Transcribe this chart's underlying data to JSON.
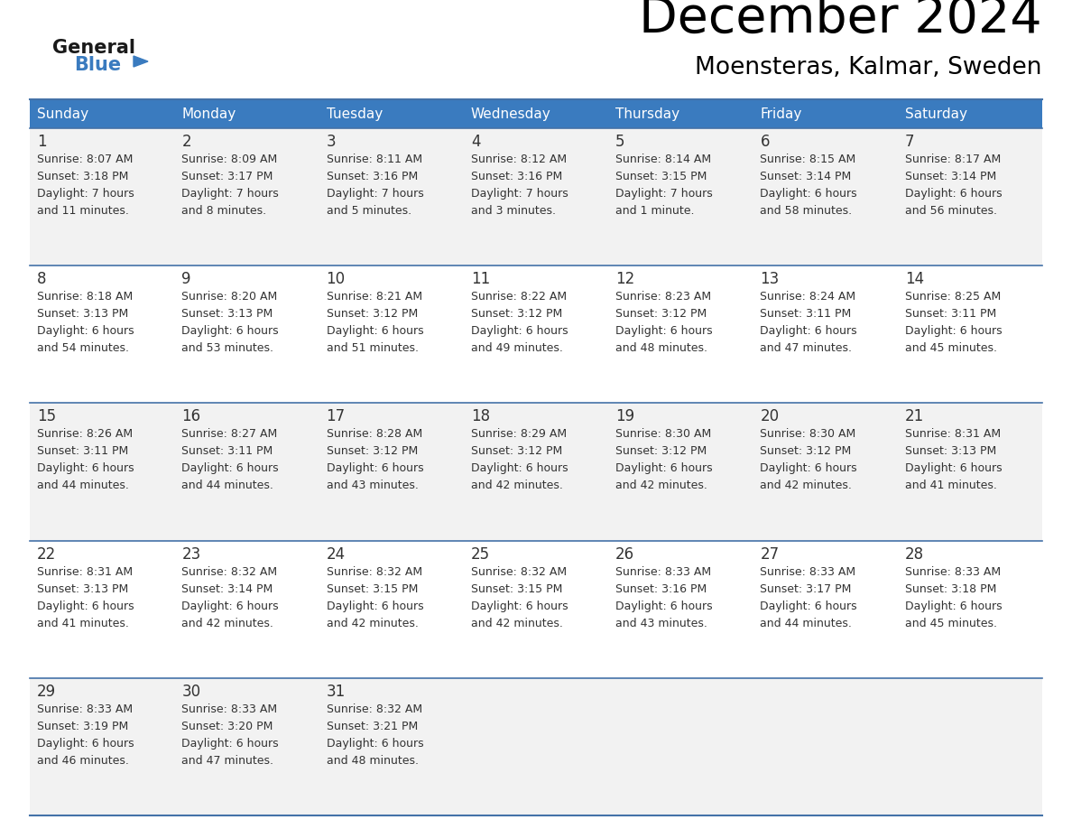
{
  "title": "December 2024",
  "subtitle": "Moensteras, Kalmar, Sweden",
  "header_color": "#3a7bbf",
  "header_text_color": "#ffffff",
  "days_of_week": [
    "Sunday",
    "Monday",
    "Tuesday",
    "Wednesday",
    "Thursday",
    "Friday",
    "Saturday"
  ],
  "bg_color_odd": "#f2f2f2",
  "bg_color_even": "#ffffff",
  "line_color": "#4472a8",
  "text_color": "#333333",
  "calendar_data": [
    [
      {
        "day": 1,
        "sunrise": "8:07 AM",
        "sunset": "3:18 PM",
        "daylight": "7 hours",
        "daylight2": "and 11 minutes."
      },
      {
        "day": 2,
        "sunrise": "8:09 AM",
        "sunset": "3:17 PM",
        "daylight": "7 hours",
        "daylight2": "and 8 minutes."
      },
      {
        "day": 3,
        "sunrise": "8:11 AM",
        "sunset": "3:16 PM",
        "daylight": "7 hours",
        "daylight2": "and 5 minutes."
      },
      {
        "day": 4,
        "sunrise": "8:12 AM",
        "sunset": "3:16 PM",
        "daylight": "7 hours",
        "daylight2": "and 3 minutes."
      },
      {
        "day": 5,
        "sunrise": "8:14 AM",
        "sunset": "3:15 PM",
        "daylight": "7 hours",
        "daylight2": "and 1 minute."
      },
      {
        "day": 6,
        "sunrise": "8:15 AM",
        "sunset": "3:14 PM",
        "daylight": "6 hours",
        "daylight2": "and 58 minutes."
      },
      {
        "day": 7,
        "sunrise": "8:17 AM",
        "sunset": "3:14 PM",
        "daylight": "6 hours",
        "daylight2": "and 56 minutes."
      }
    ],
    [
      {
        "day": 8,
        "sunrise": "8:18 AM",
        "sunset": "3:13 PM",
        "daylight": "6 hours",
        "daylight2": "and 54 minutes."
      },
      {
        "day": 9,
        "sunrise": "8:20 AM",
        "sunset": "3:13 PM",
        "daylight": "6 hours",
        "daylight2": "and 53 minutes."
      },
      {
        "day": 10,
        "sunrise": "8:21 AM",
        "sunset": "3:12 PM",
        "daylight": "6 hours",
        "daylight2": "and 51 minutes."
      },
      {
        "day": 11,
        "sunrise": "8:22 AM",
        "sunset": "3:12 PM",
        "daylight": "6 hours",
        "daylight2": "and 49 minutes."
      },
      {
        "day": 12,
        "sunrise": "8:23 AM",
        "sunset": "3:12 PM",
        "daylight": "6 hours",
        "daylight2": "and 48 minutes."
      },
      {
        "day": 13,
        "sunrise": "8:24 AM",
        "sunset": "3:11 PM",
        "daylight": "6 hours",
        "daylight2": "and 47 minutes."
      },
      {
        "day": 14,
        "sunrise": "8:25 AM",
        "sunset": "3:11 PM",
        "daylight": "6 hours",
        "daylight2": "and 45 minutes."
      }
    ],
    [
      {
        "day": 15,
        "sunrise": "8:26 AM",
        "sunset": "3:11 PM",
        "daylight": "6 hours",
        "daylight2": "and 44 minutes."
      },
      {
        "day": 16,
        "sunrise": "8:27 AM",
        "sunset": "3:11 PM",
        "daylight": "6 hours",
        "daylight2": "and 44 minutes."
      },
      {
        "day": 17,
        "sunrise": "8:28 AM",
        "sunset": "3:12 PM",
        "daylight": "6 hours",
        "daylight2": "and 43 minutes."
      },
      {
        "day": 18,
        "sunrise": "8:29 AM",
        "sunset": "3:12 PM",
        "daylight": "6 hours",
        "daylight2": "and 42 minutes."
      },
      {
        "day": 19,
        "sunrise": "8:30 AM",
        "sunset": "3:12 PM",
        "daylight": "6 hours",
        "daylight2": "and 42 minutes."
      },
      {
        "day": 20,
        "sunrise": "8:30 AM",
        "sunset": "3:12 PM",
        "daylight": "6 hours",
        "daylight2": "and 42 minutes."
      },
      {
        "day": 21,
        "sunrise": "8:31 AM",
        "sunset": "3:13 PM",
        "daylight": "6 hours",
        "daylight2": "and 41 minutes."
      }
    ],
    [
      {
        "day": 22,
        "sunrise": "8:31 AM",
        "sunset": "3:13 PM",
        "daylight": "6 hours",
        "daylight2": "and 41 minutes."
      },
      {
        "day": 23,
        "sunrise": "8:32 AM",
        "sunset": "3:14 PM",
        "daylight": "6 hours",
        "daylight2": "and 42 minutes."
      },
      {
        "day": 24,
        "sunrise": "8:32 AM",
        "sunset": "3:15 PM",
        "daylight": "6 hours",
        "daylight2": "and 42 minutes."
      },
      {
        "day": 25,
        "sunrise": "8:32 AM",
        "sunset": "3:15 PM",
        "daylight": "6 hours",
        "daylight2": "and 42 minutes."
      },
      {
        "day": 26,
        "sunrise": "8:33 AM",
        "sunset": "3:16 PM",
        "daylight": "6 hours",
        "daylight2": "and 43 minutes."
      },
      {
        "day": 27,
        "sunrise": "8:33 AM",
        "sunset": "3:17 PM",
        "daylight": "6 hours",
        "daylight2": "and 44 minutes."
      },
      {
        "day": 28,
        "sunrise": "8:33 AM",
        "sunset": "3:18 PM",
        "daylight": "6 hours",
        "daylight2": "and 45 minutes."
      }
    ],
    [
      {
        "day": 29,
        "sunrise": "8:33 AM",
        "sunset": "3:19 PM",
        "daylight": "6 hours",
        "daylight2": "and 46 minutes."
      },
      {
        "day": 30,
        "sunrise": "8:33 AM",
        "sunset": "3:20 PM",
        "daylight": "6 hours",
        "daylight2": "and 47 minutes."
      },
      {
        "day": 31,
        "sunrise": "8:32 AM",
        "sunset": "3:21 PM",
        "daylight": "6 hours",
        "daylight2": "and 48 minutes."
      },
      null,
      null,
      null,
      null
    ]
  ]
}
